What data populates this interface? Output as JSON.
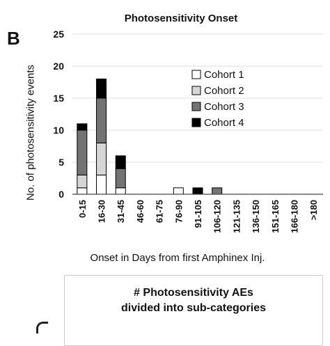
{
  "panel_letter": "B",
  "subcategory_box": {
    "line1": "# Photosensitivity AEs",
    "line2": "divided into sub-categories"
  },
  "chart_data": {
    "type": "bar",
    "stacked": true,
    "title": "Photosensitivity Onset",
    "ylabel": "No. of  photosensitivity events",
    "xlabel": "Onset in Days from first Amphinex Inj.",
    "ylim": [
      0,
      25
    ],
    "yticks": [
      0,
      5,
      10,
      15,
      20,
      25
    ],
    "grid": true,
    "legend_position": "right",
    "categories": [
      "0-15",
      "16-30",
      "31-45",
      "46-60",
      "61-75",
      "76-90",
      "91-105",
      "106-120",
      "121-135",
      "136-150",
      "151-165",
      "166-180",
      ">180"
    ],
    "series": [
      {
        "name": "Cohort 1",
        "color": "#ffffff",
        "values": [
          1,
          3,
          1,
          0,
          0,
          1,
          0,
          0,
          0,
          0,
          0,
          0,
          0
        ]
      },
      {
        "name": "Cohort 2",
        "color": "#d6d6d6",
        "values": [
          2,
          5,
          0,
          0,
          0,
          0,
          0,
          0,
          0,
          0,
          0,
          0,
          0
        ]
      },
      {
        "name": "Cohort 3",
        "color": "#737373",
        "values": [
          7,
          7,
          3,
          0,
          0,
          0,
          0,
          1,
          0,
          0,
          0,
          0,
          0
        ]
      },
      {
        "name": "Cohort 4",
        "color": "#000000",
        "values": [
          1,
          3,
          2,
          0,
          0,
          0,
          1,
          0,
          0,
          0,
          0,
          0,
          0
        ]
      }
    ]
  }
}
